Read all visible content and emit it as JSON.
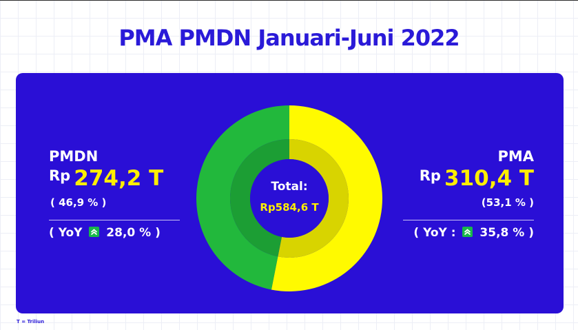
{
  "title": "PMA PMDN Januari-Juni 2022",
  "footnote": "T = Triliun",
  "pmdn": {
    "name": "PMDN",
    "currency": "Rp",
    "amount": "274,2 T",
    "share": "( 46,9 % )",
    "yoy_prefix": "( YoY",
    "yoy_value": "28,0 % )"
  },
  "pma": {
    "name": "PMA",
    "currency": "Rp",
    "amount": "310,4 T",
    "share": "(53,1 % )",
    "yoy_prefix": "( YoY  :",
    "yoy_value": "35,8 % )"
  },
  "center": {
    "label": "Total:",
    "value": "Rp584,6 T"
  },
  "colors": {
    "title": "#2a1ad8",
    "panel": "#2a0fd6",
    "highlight": "#ffee00",
    "pmdn_slice": "#22b83c",
    "pma_slice": "#fffa00",
    "up_badge": "#18b84a"
  },
  "chart_data": {
    "type": "pie",
    "title": "PMA PMDN Januari-Juni 2022",
    "unit": "Rp Triliun",
    "total": 584.6,
    "slices": [
      {
        "name": "PMA",
        "value": 310.4,
        "percent": 53.1,
        "color": "#fffa00",
        "inner_color": "#d8d400"
      },
      {
        "name": "PMDN",
        "value": 274.2,
        "percent": 46.9,
        "color": "#22b83c",
        "inner_color": "#1c9e34"
      }
    ],
    "yoy_growth_percent": {
      "PMDN": 28.0,
      "PMA": 35.8
    }
  }
}
